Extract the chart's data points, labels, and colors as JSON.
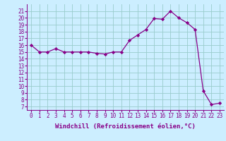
{
  "x": [
    0,
    1,
    2,
    3,
    4,
    5,
    6,
    7,
    8,
    9,
    10,
    11,
    12,
    13,
    14,
    15,
    16,
    17,
    18,
    19,
    20,
    21,
    22,
    23
  ],
  "y": [
    16.0,
    15.0,
    15.0,
    15.5,
    15.0,
    15.0,
    15.0,
    15.0,
    14.8,
    14.7,
    15.0,
    15.0,
    16.7,
    17.5,
    18.3,
    19.9,
    19.8,
    21.0,
    20.0,
    19.3,
    18.3,
    9.3,
    7.3,
    7.5
  ],
  "xlim": [
    -0.5,
    23.5
  ],
  "ylim": [
    6.5,
    22.0
  ],
  "yticks": [
    7,
    8,
    9,
    10,
    11,
    12,
    13,
    14,
    15,
    16,
    17,
    18,
    19,
    20,
    21
  ],
  "xticks": [
    0,
    1,
    2,
    3,
    4,
    5,
    6,
    7,
    8,
    9,
    10,
    11,
    12,
    13,
    14,
    15,
    16,
    17,
    18,
    19,
    20,
    21,
    22,
    23
  ],
  "line_color": "#880088",
  "marker": "D",
  "marker_size": 2.2,
  "bg_color": "#cceeff",
  "grid_color": "#99cccc",
  "xlabel": "Windchill (Refroidissement éolien,°C)",
  "tick_fontsize": 5.5,
  "label_fontsize": 6.5
}
